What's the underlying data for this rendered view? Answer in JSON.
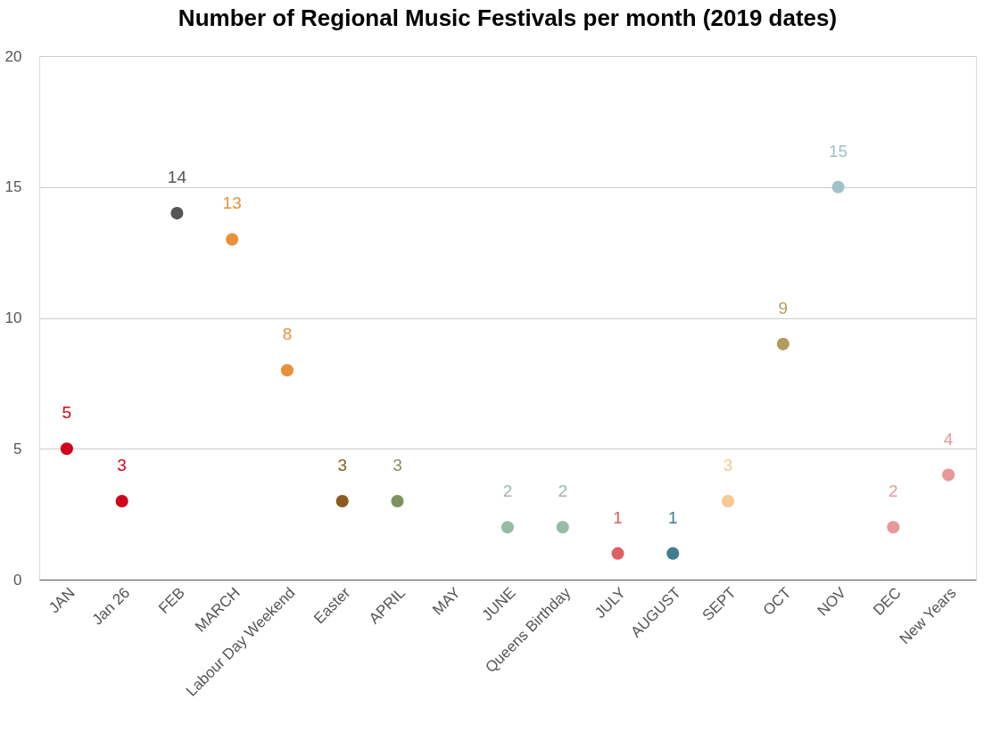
{
  "chart_data": {
    "type": "scatter",
    "title": "Number of Regional Music Festivals per month (2019 dates)",
    "categories": [
      "JAN",
      "Jan 26",
      "FEB",
      "MARCH",
      "Labour Day Weekend",
      "Easter",
      "APRIL",
      "MAY",
      "JUNE",
      "Queens Birthday",
      "JULY",
      "AUGUST",
      "SEPT",
      "OCT",
      "NOV",
      "DEC",
      "New Years"
    ],
    "values": [
      5,
      3,
      14,
      13,
      8,
      3,
      3,
      null,
      2,
      2,
      1,
      1,
      3,
      9,
      15,
      2,
      4
    ],
    "colors": [
      "#d0021b",
      "#d0021b",
      "#555555",
      "#e8913a",
      "#e8913a",
      "#8b5a1e",
      "#7f9260",
      "#999999",
      "#97bba5",
      "#97bba5",
      "#df6060",
      "#3f7d8f",
      "#f8c995",
      "#b39b5b",
      "#9fc2c8",
      "#e8979a",
      "#e8979a"
    ],
    "ylim": [
      0,
      20
    ],
    "yticks": [
      0,
      5,
      10,
      15,
      20
    ],
    "grid": "y",
    "data_labels": true,
    "marker": "circle"
  }
}
